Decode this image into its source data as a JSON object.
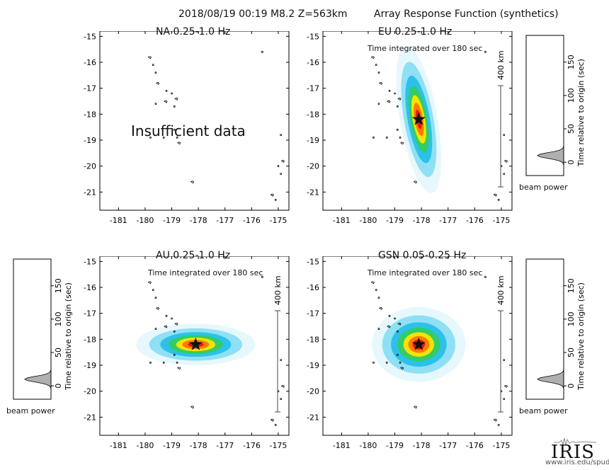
{
  "header": {
    "event": "2018/08/19 00:19  M8.2  Z=563km",
    "product": "Array Response Function (synthetics)"
  },
  "branding": {
    "logo": "IRIS",
    "url": "www.iris.edu/spud"
  },
  "colors": {
    "frame": "#000000",
    "beam_fill": "#b0b0b0",
    "star": "#111111",
    "heat": [
      "#d6f3fb",
      "#8fe0f5",
      "#2cc1ea",
      "#33cc66",
      "#f5e400",
      "#ff7a00",
      "#e0191c"
    ]
  },
  "chart_data": [
    {
      "type": "heatmap",
      "name": "NA",
      "band": "0.25-1.0 Hz",
      "title": "NA  0.25-1.0 Hz",
      "note": "",
      "message": "Insufficient data",
      "xlim": [
        -181.7,
        -174.6
      ],
      "ylim": [
        -21.7,
        -14.8
      ],
      "xticks": [
        -181,
        -180,
        -179,
        -178,
        -177,
        -176,
        -175
      ],
      "yticks": [
        -15,
        -16,
        -17,
        -18,
        -19,
        -20,
        -21
      ],
      "scale_label": "",
      "peak": null
    },
    {
      "type": "heatmap",
      "name": "EU",
      "band": "0.25-1.0 Hz",
      "title": "EU  0.25-1.0 Hz",
      "note": "Time integrated over 180 sec",
      "message": "",
      "xlim": [
        -181.7,
        -174.6
      ],
      "ylim": [
        -21.7,
        -14.8
      ],
      "xticks": [
        -181,
        -180,
        -179,
        -178,
        -177,
        -176,
        -175
      ],
      "yticks": [
        -15,
        -16,
        -17,
        -18,
        -19,
        -20,
        -21
      ],
      "scale_label": "400 km",
      "peak": {
        "lon": -178.1,
        "lat": -18.2,
        "spread_lon": 0.22,
        "spread_lat": 0.9,
        "skew": -0.25
      }
    },
    {
      "type": "heatmap",
      "name": "AU",
      "band": "0.25-1.0 Hz",
      "title": "AU  0.25-1.0 Hz",
      "note": "Time integrated over 180 sec",
      "message": "",
      "xlim": [
        -181.7,
        -174.6
      ],
      "ylim": [
        -21.7,
        -14.8
      ],
      "xticks": [
        -181,
        -180,
        -179,
        -178,
        -177,
        -176,
        -175
      ],
      "yticks": [
        -15,
        -16,
        -17,
        -18,
        -19,
        -20,
        -21
      ],
      "scale_label": "400 km",
      "peak": {
        "lon": -178.1,
        "lat": -18.2,
        "spread_lon": 0.7,
        "spread_lat": 0.25,
        "skew": 0
      }
    },
    {
      "type": "heatmap",
      "name": "GSN",
      "band": "0.05-0.25 Hz",
      "title": "GSN  0.05-0.25 Hz",
      "note": "Time integrated over 180 sec",
      "message": "",
      "xlim": [
        -181.7,
        -174.6
      ],
      "ylim": [
        -21.7,
        -14.8
      ],
      "xticks": [
        -181,
        -180,
        -179,
        -178,
        -177,
        -176,
        -175
      ],
      "yticks": [
        -15,
        -16,
        -17,
        -18,
        -19,
        -20,
        -21
      ],
      "scale_label": "400 km",
      "peak": {
        "lon": -178.1,
        "lat": -18.2,
        "spread_lon": 0.55,
        "spread_lat": 0.45,
        "skew": 0
      }
    },
    {
      "type": "area",
      "name": "beam-EU",
      "xlabel": "beam power",
      "ylabel": "Time relative to origin (sec)",
      "ylim": [
        -20,
        190
      ],
      "yticks": [
        0,
        50,
        100,
        150
      ],
      "peak_time": 10,
      "peak_power": 0.7
    },
    {
      "type": "area",
      "name": "beam-AU",
      "xlabel": "beam power",
      "ylabel": "Time relative to origin (sec)",
      "ylim": [
        -20,
        190
      ],
      "yticks": [
        0,
        50,
        100,
        150
      ],
      "peak_time": 10,
      "peak_power": 0.7
    },
    {
      "type": "area",
      "name": "beam-GSN",
      "xlabel": "beam power",
      "ylabel": "Time relative to origin (sec)",
      "ylim": [
        -20,
        190
      ],
      "yticks": [
        0,
        50,
        100,
        150
      ],
      "peak_time": 10,
      "peak_power": 0.7
    }
  ]
}
